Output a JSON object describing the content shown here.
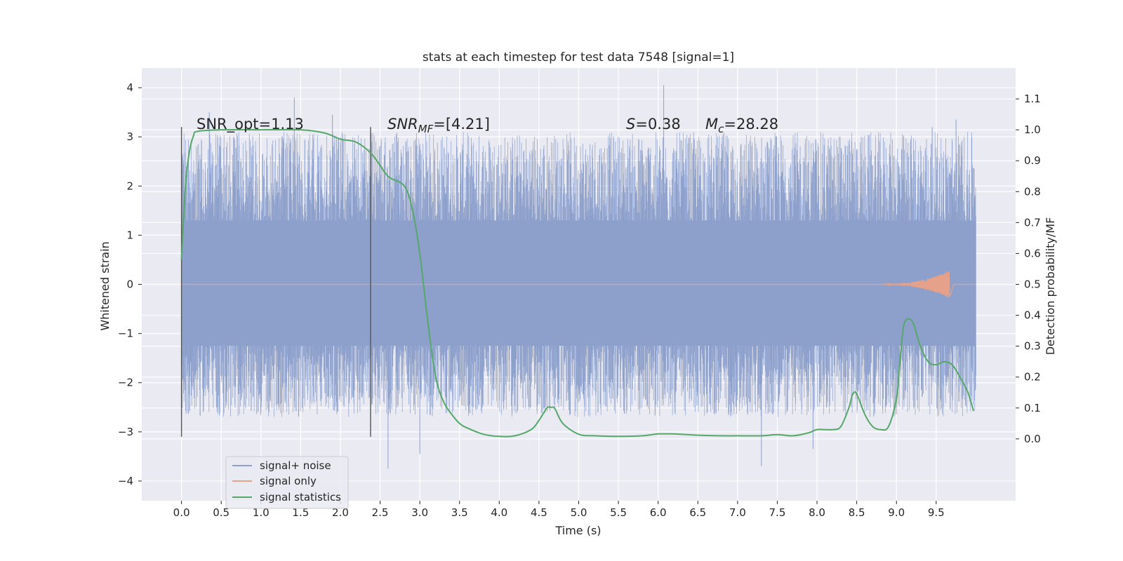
{
  "chart_data": {
    "type": "line",
    "title": "stats at each timestep for test data 7548 [signal=1]",
    "xlabel": "Time (s)",
    "ylabel": "Whitened strain",
    "ylabel_right": "Detection probability/MF",
    "xlim": [
      -0.5,
      10.5
    ],
    "ylim": [
      -4.4,
      4.4
    ],
    "ylim_right": [
      -0.2,
      1.2
    ],
    "x_ticks": [
      0.0,
      0.5,
      1.0,
      1.5,
      2.0,
      2.5,
      3.0,
      3.5,
      4.0,
      4.5,
      5.0,
      5.5,
      6.0,
      6.5,
      7.0,
      7.5,
      8.0,
      8.5,
      9.0,
      9.5
    ],
    "x_tick_labels": [
      "0.0",
      "0.5",
      "1.0",
      "1.5",
      "2.0",
      "2.5",
      "3.0",
      "3.5",
      "4.0",
      "4.5",
      "5.0",
      "5.5",
      "6.0",
      "6.5",
      "7.0",
      "7.5",
      "8.0",
      "8.5",
      "9.0",
      "9.5"
    ],
    "y_ticks": [
      -4,
      -3,
      -2,
      -1,
      0,
      1,
      2,
      3,
      4
    ],
    "y_tick_labels": [
      "−4",
      "−3",
      "−2",
      "−1",
      "0",
      "1",
      "2",
      "3",
      "4"
    ],
    "y_ticks_right": [
      0.0,
      0.1,
      0.2,
      0.3,
      0.4,
      0.5,
      0.6,
      0.7,
      0.8,
      0.9,
      1.0,
      1.1
    ],
    "y_tick_labels_right": [
      "0.0",
      "0.1",
      "0.2",
      "0.3",
      "0.4",
      "0.5",
      "0.6",
      "0.7",
      "0.8",
      "0.9",
      "1.0",
      "1.1"
    ],
    "grid": true,
    "legend_position": "lower-left",
    "annotations": {
      "snr_opt": "SNR_opt=1.13",
      "snr_mf_main": "SNR",
      "snr_mf_sub": "MF",
      "snr_mf_rest": "=[4.21]",
      "s_var": "S",
      "s_rest": "=0.38",
      "mc_main": "M",
      "mc_sub": "c",
      "mc_rest": "=28.28"
    },
    "vertical_markers_x": [
      0.0,
      2.38
    ],
    "vertical_markers_ylim": [
      -3.1,
      3.2
    ],
    "series": [
      {
        "name": "signal+ noise",
        "color": "#8da0cb",
        "axis": "left",
        "x_range": [
          0.0,
          10.0
        ],
        "core_band": [
          -1.25,
          1.3
        ],
        "envelope_typical": [
          -2.6,
          3.0
        ],
        "max_excursion": [
          -3.75,
          4.05
        ]
      },
      {
        "name": "signal only",
        "color": "#e5a18a",
        "axis": "left",
        "x_range": [
          0.0,
          9.67
        ],
        "peak_amplitude": 0.28,
        "peak_x": 9.67
      },
      {
        "name": "signal statistics",
        "color": "#55a868",
        "axis": "right",
        "x": [
          0.0,
          0.05,
          0.1,
          0.15,
          0.2,
          0.5,
          1.0,
          1.5,
          1.8,
          2.0,
          2.2,
          2.4,
          2.6,
          2.8,
          2.9,
          3.0,
          3.1,
          3.2,
          3.3,
          3.4,
          3.5,
          3.6,
          3.8,
          4.0,
          4.2,
          4.4,
          4.5,
          4.6,
          4.65,
          4.7,
          4.8,
          5.0,
          5.2,
          5.5,
          5.8,
          6.0,
          6.2,
          6.5,
          6.8,
          7.0,
          7.3,
          7.5,
          7.7,
          7.9,
          8.0,
          8.2,
          8.3,
          8.4,
          8.45,
          8.5,
          8.6,
          8.7,
          8.8,
          8.9,
          9.0,
          9.05,
          9.1,
          9.2,
          9.3,
          9.4,
          9.5,
          9.6,
          9.7,
          9.8,
          9.9,
          9.97
        ],
        "y": [
          0.58,
          0.82,
          0.93,
          0.98,
          0.995,
          1.0,
          1.0,
          1.0,
          0.99,
          0.97,
          0.96,
          0.92,
          0.85,
          0.82,
          0.75,
          0.6,
          0.38,
          0.2,
          0.12,
          0.08,
          0.05,
          0.035,
          0.015,
          0.008,
          0.01,
          0.03,
          0.06,
          0.1,
          0.102,
          0.098,
          0.05,
          0.015,
          0.01,
          0.008,
          0.01,
          0.016,
          0.016,
          0.012,
          0.01,
          0.01,
          0.01,
          0.014,
          0.01,
          0.02,
          0.03,
          0.03,
          0.04,
          0.1,
          0.145,
          0.145,
          0.08,
          0.04,
          0.03,
          0.04,
          0.13,
          0.27,
          0.375,
          0.38,
          0.3,
          0.25,
          0.24,
          0.25,
          0.24,
          0.2,
          0.15,
          0.09
        ]
      }
    ]
  }
}
